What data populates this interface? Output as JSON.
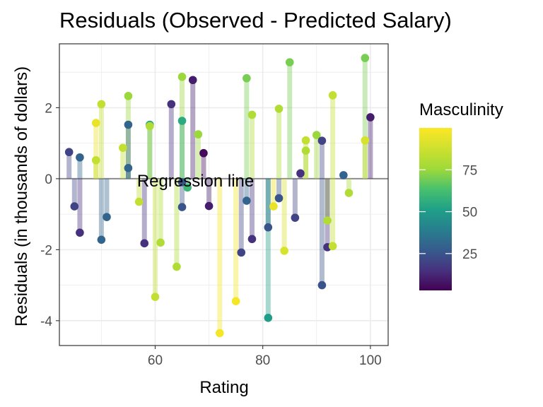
{
  "chart_data": {
    "type": "scatter",
    "title": "Residuals (Observed - Predicted Salary)",
    "xlabel": "Rating",
    "ylabel": "Residuals (in thousands of dollars)",
    "xlim": [
      42.2,
      103.3
    ],
    "ylim": [
      -4.7,
      3.8
    ],
    "xticks": [
      60,
      80,
      100
    ],
    "yticks": [
      -4,
      -2,
      0,
      2
    ],
    "grid": true,
    "reference_line": {
      "y": 0,
      "label": "Regression line"
    },
    "legend": {
      "title": "Masculinity",
      "position": "right",
      "type": "colorbar",
      "range": [
        3,
        100
      ],
      "ticks": [
        25,
        50,
        75
      ],
      "colormap": "viridis"
    },
    "points": [
      {
        "x": 44,
        "y": 0.75,
        "color": 20
      },
      {
        "x": 45,
        "y": -0.78,
        "color": 20
      },
      {
        "x": 46,
        "y": 0.6,
        "color": 30
      },
      {
        "x": 46,
        "y": -1.52,
        "color": 15
      },
      {
        "x": 49,
        "y": 1.57,
        "color": 95
      },
      {
        "x": 49,
        "y": 0.52,
        "color": 85
      },
      {
        "x": 50,
        "y": 2.1,
        "color": 85
      },
      {
        "x": 50,
        "y": -1.72,
        "color": 30
      },
      {
        "x": 51,
        "y": -1.08,
        "color": 30
      },
      {
        "x": 54,
        "y": 0.87,
        "color": 85
      },
      {
        "x": 55,
        "y": 2.33,
        "color": 75
      },
      {
        "x": 55,
        "y": 1.52,
        "color": 30
      },
      {
        "x": 55,
        "y": 0.3,
        "color": 30
      },
      {
        "x": 57,
        "y": -0.65,
        "color": 85
      },
      {
        "x": 58,
        "y": -1.82,
        "color": 15
      },
      {
        "x": 59,
        "y": 1.52,
        "color": 55
      },
      {
        "x": 59,
        "y": 1.48,
        "color": 80
      },
      {
        "x": 60,
        "y": -3.33,
        "color": 85
      },
      {
        "x": 61,
        "y": -1.8,
        "color": 80
      },
      {
        "x": 63,
        "y": 2.1,
        "color": 15
      },
      {
        "x": 64,
        "y": -2.48,
        "color": 80
      },
      {
        "x": 65,
        "y": 2.87,
        "color": 75
      },
      {
        "x": 65,
        "y": 1.63,
        "color": 55
      },
      {
        "x": 65,
        "y": -0.1,
        "color": 25
      },
      {
        "x": 65,
        "y": -0.8,
        "color": 25
      },
      {
        "x": 66,
        "y": -0.25,
        "color": 60
      },
      {
        "x": 67,
        "y": 2.78,
        "color": 10
      },
      {
        "x": 68,
        "y": 1.25,
        "color": 75
      },
      {
        "x": 69,
        "y": 0.72,
        "color": 5
      },
      {
        "x": 70,
        "y": -0.77,
        "color": 10
      },
      {
        "x": 72,
        "y": -4.35,
        "color": 98
      },
      {
        "x": 75,
        "y": -3.45,
        "color": 98
      },
      {
        "x": 76,
        "y": -2.08,
        "color": 20
      },
      {
        "x": 77,
        "y": 2.83,
        "color": 70
      },
      {
        "x": 77,
        "y": -0.62,
        "color": 30
      },
      {
        "x": 78,
        "y": 1.8,
        "color": 80
      },
      {
        "x": 78,
        "y": -1.7,
        "color": 15
      },
      {
        "x": 81,
        "y": -1.37,
        "color": 25
      },
      {
        "x": 81,
        "y": -3.92,
        "color": 50
      },
      {
        "x": 82,
        "y": -0.78,
        "color": 95
      },
      {
        "x": 83,
        "y": 1.97,
        "color": 80
      },
      {
        "x": 83,
        "y": -0.55,
        "color": 25
      },
      {
        "x": 84,
        "y": -2.03,
        "color": 90
      },
      {
        "x": 85,
        "y": 3.28,
        "color": 70
      },
      {
        "x": 86,
        "y": -1.1,
        "color": 20
      },
      {
        "x": 87,
        "y": 0.15,
        "color": 15
      },
      {
        "x": 88,
        "y": 1.08,
        "color": 85
      },
      {
        "x": 88,
        "y": 0.79,
        "color": 80
      },
      {
        "x": 90,
        "y": 1.23,
        "color": 75
      },
      {
        "x": 91,
        "y": 1.07,
        "color": 20
      },
      {
        "x": 91,
        "y": -3.0,
        "color": 25
      },
      {
        "x": 92,
        "y": -1.18,
        "color": 80
      },
      {
        "x": 92,
        "y": -1.93,
        "color": 15
      },
      {
        "x": 93,
        "y": 2.35,
        "color": 85
      },
      {
        "x": 93,
        "y": -1.9,
        "color": 85
      },
      {
        "x": 95,
        "y": 0.1,
        "color": 30
      },
      {
        "x": 96,
        "y": -0.4,
        "color": 80
      },
      {
        "x": 99,
        "y": 3.4,
        "color": 70
      },
      {
        "x": 99,
        "y": 1.08,
        "color": 90
      },
      {
        "x": 100,
        "y": 1.73,
        "color": 10
      }
    ]
  }
}
